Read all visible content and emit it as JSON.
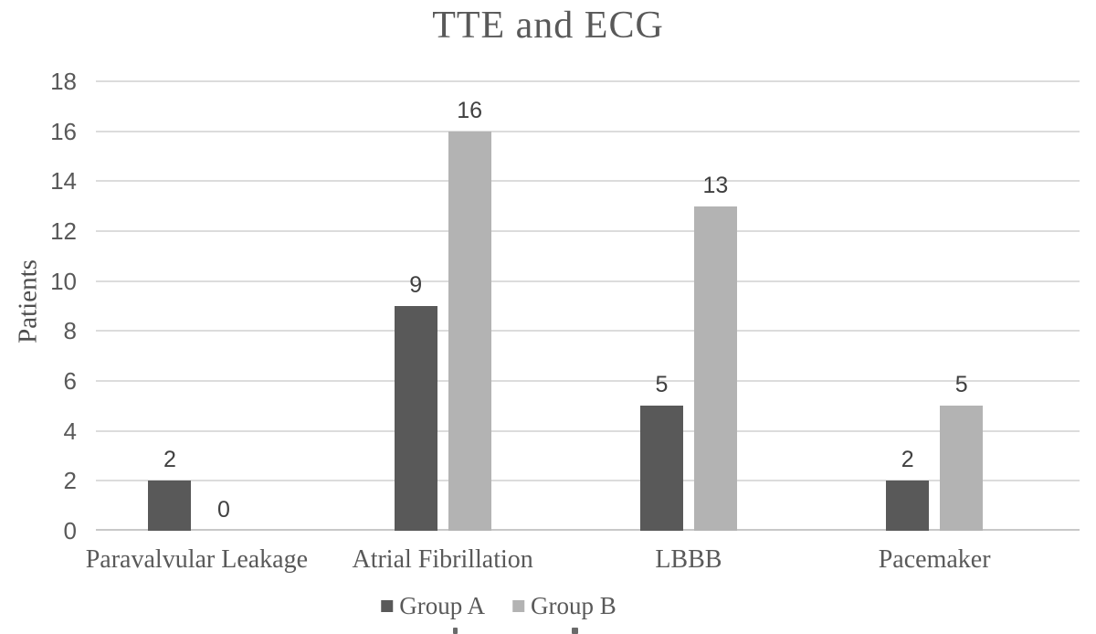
{
  "chart_data": {
    "type": "bar",
    "title": "TTE and ECG",
    "xlabel": "",
    "ylabel": "Patients",
    "categories": [
      "Paravalvular Leakage",
      "Atrial Fibrillation",
      "LBBB",
      "Pacemaker"
    ],
    "series": [
      {
        "name": "Group A",
        "color": "#595959",
        "values": [
          2,
          9,
          5,
          2
        ]
      },
      {
        "name": "Group B",
        "color": "#b3b3b3",
        "values": [
          0,
          16,
          13,
          5
        ]
      }
    ],
    "ylim": [
      0,
      18
    ],
    "yticks": [
      0,
      2,
      4,
      6,
      8,
      10,
      12,
      14,
      16,
      18
    ],
    "grid": "horizontal",
    "legend_position": "bottom",
    "data_labels_shown": true,
    "data_labels": [
      {
        "category": "Paravalvular Leakage",
        "Group A": "2",
        "Group B": "0"
      },
      {
        "category": "Atrial Fibrillation",
        "Group A": "9",
        "Group B": "16"
      },
      {
        "category": "LBBB",
        "Group A": "5",
        "Group B": "13"
      },
      {
        "category": "Pacemaker",
        "Group A": "2",
        "Group B": "5"
      }
    ]
  },
  "colors": {
    "background": "#ffffff",
    "gridline": "#dcdcdc",
    "axis_line": "#c8c8c8",
    "text": "#595959",
    "data_label": "#404040",
    "series_a": "#595959",
    "series_b": "#b3b3b3"
  }
}
